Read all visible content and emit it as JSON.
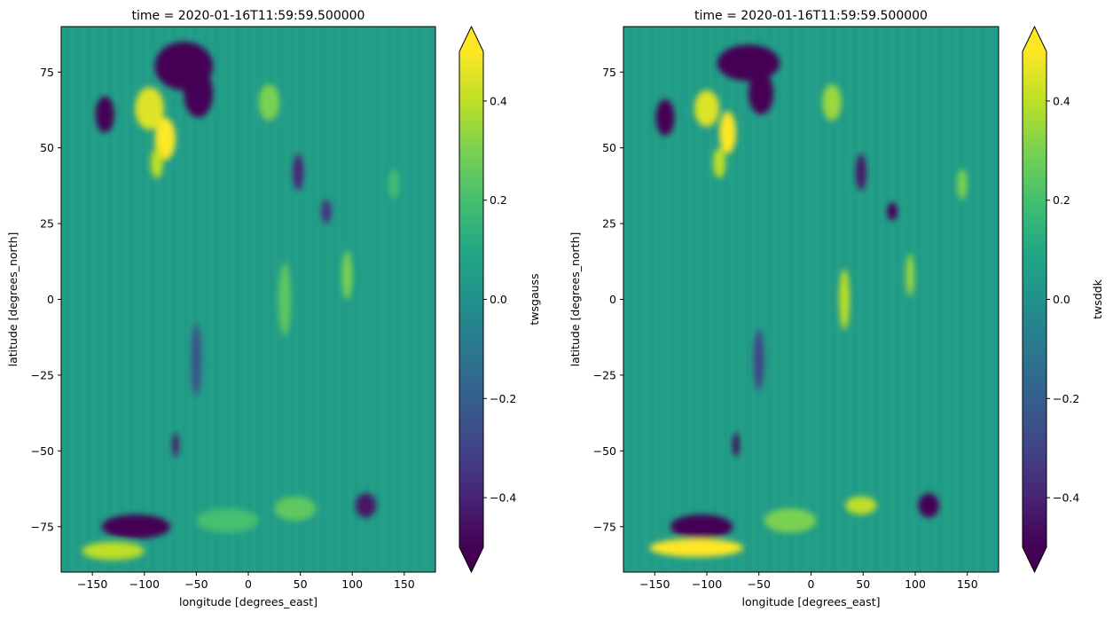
{
  "chart_data": [
    {
      "type": "heatmap",
      "title": "time = 2020-01-16T11:59:59.500000",
      "xlabel": "longitude [degrees_east]",
      "ylabel": "latitude [degrees_north]",
      "xlim": [
        -180,
        180
      ],
      "ylim": [
        -90,
        90
      ],
      "xticks": [
        -150,
        -100,
        -50,
        0,
        50,
        100,
        150
      ],
      "yticks": [
        -75,
        -50,
        -25,
        0,
        25,
        50,
        75
      ],
      "colorbar": {
        "label": "twsgauss",
        "vmin": -0.5,
        "vmax": 0.5,
        "extend": "both",
        "ticks": [
          -0.4,
          -0.2,
          0.0,
          0.2,
          0.4
        ],
        "tick_labels": [
          "−0.4",
          "−0.2",
          "0.0",
          "0.2",
          "0.4"
        ],
        "colormap": "viridis"
      },
      "grid": false,
      "background_value": 0.05,
      "features": [
        {
          "lon": -62,
          "lat": 77,
          "rlon": 28,
          "rlat": 8,
          "value": -0.6
        },
        {
          "lon": -48,
          "lat": 68,
          "rlon": 14,
          "rlat": 8,
          "value": -0.6
        },
        {
          "lon": -138,
          "lat": 61,
          "rlon": 9,
          "rlat": 6,
          "value": -0.55
        },
        {
          "lon": -95,
          "lat": 63,
          "rlon": 14,
          "rlat": 7,
          "value": 0.45
        },
        {
          "lon": -80,
          "lat": 53,
          "rlon": 10,
          "rlat": 7,
          "value": 0.5
        },
        {
          "lon": -88,
          "lat": 45,
          "rlon": 6,
          "rlat": 5,
          "value": 0.4
        },
        {
          "lon": 20,
          "lat": 65,
          "rlon": 10,
          "rlat": 6,
          "value": 0.3
        },
        {
          "lon": 48,
          "lat": 42,
          "rlon": 5,
          "rlat": 6,
          "value": -0.4
        },
        {
          "lon": 75,
          "lat": 29,
          "rlon": 5,
          "rlat": 4,
          "value": -0.35
        },
        {
          "lon": 35,
          "lat": 0,
          "rlon": 6,
          "rlat": 12,
          "value": 0.25
        },
        {
          "lon": 95,
          "lat": 8,
          "rlon": 5,
          "rlat": 8,
          "value": 0.3
        },
        {
          "lon": -50,
          "lat": -20,
          "rlon": 5,
          "rlat": 12,
          "value": -0.25
        },
        {
          "lon": -70,
          "lat": -48,
          "rlon": 3,
          "rlat": 4,
          "value": -0.45
        },
        {
          "lon": -108,
          "lat": -75,
          "rlon": 33,
          "rlat": 4,
          "value": -0.6
        },
        {
          "lon": -130,
          "lat": -83,
          "rlon": 30,
          "rlat": 3,
          "value": 0.4
        },
        {
          "lon": -20,
          "lat": -73,
          "rlon": 30,
          "rlat": 4,
          "value": 0.2
        },
        {
          "lon": 45,
          "lat": -69,
          "rlon": 20,
          "rlat": 4,
          "value": 0.25
        },
        {
          "lon": 113,
          "lat": -68,
          "rlon": 10,
          "rlat": 4,
          "value": -0.45
        },
        {
          "lon": 140,
          "lat": 38,
          "rlon": 5,
          "rlat": 5,
          "value": 0.2
        }
      ]
    },
    {
      "type": "heatmap",
      "title": "time = 2020-01-16T11:59:59.500000",
      "xlabel": "longitude [degrees_east]",
      "ylabel": "latitude [degrees_north]",
      "xlim": [
        -180,
        180
      ],
      "ylim": [
        -90,
        90
      ],
      "xticks": [
        -150,
        -100,
        -50,
        0,
        50,
        100,
        150
      ],
      "yticks": [
        -75,
        -50,
        -25,
        0,
        25,
        50,
        75
      ],
      "colorbar": {
        "label": "twsddk",
        "vmin": -0.5,
        "vmax": 0.5,
        "extend": "both",
        "ticks": [
          -0.4,
          -0.2,
          0.0,
          0.2,
          0.4
        ],
        "tick_labels": [
          "−0.4",
          "−0.2",
          "0.0",
          "0.2",
          "0.4"
        ],
        "colormap": "viridis"
      },
      "grid": false,
      "background_value": 0.05,
      "features": [
        {
          "lon": -60,
          "lat": 78,
          "rlon": 30,
          "rlat": 6,
          "value": -0.6
        },
        {
          "lon": -48,
          "lat": 68,
          "rlon": 12,
          "rlat": 7,
          "value": -0.6
        },
        {
          "lon": -140,
          "lat": 60,
          "rlon": 9,
          "rlat": 6,
          "value": -0.55
        },
        {
          "lon": -100,
          "lat": 63,
          "rlon": 12,
          "rlat": 6,
          "value": 0.45
        },
        {
          "lon": -80,
          "lat": 55,
          "rlon": 8,
          "rlat": 7,
          "value": 0.5
        },
        {
          "lon": -88,
          "lat": 45,
          "rlon": 6,
          "rlat": 5,
          "value": 0.4
        },
        {
          "lon": 20,
          "lat": 65,
          "rlon": 9,
          "rlat": 6,
          "value": 0.35
        },
        {
          "lon": 48,
          "lat": 42,
          "rlon": 5,
          "rlat": 6,
          "value": -0.45
        },
        {
          "lon": 78,
          "lat": 29,
          "rlon": 5,
          "rlat": 3,
          "value": -0.5
        },
        {
          "lon": 32,
          "lat": 0,
          "rlon": 5,
          "rlat": 10,
          "value": 0.4
        },
        {
          "lon": 95,
          "lat": 8,
          "rlon": 4,
          "rlat": 7,
          "value": 0.35
        },
        {
          "lon": -50,
          "lat": -20,
          "rlon": 5,
          "rlat": 10,
          "value": -0.3
        },
        {
          "lon": -72,
          "lat": -48,
          "rlon": 3,
          "rlat": 4,
          "value": -0.55
        },
        {
          "lon": -105,
          "lat": -75,
          "rlon": 30,
          "rlat": 4,
          "value": -0.6
        },
        {
          "lon": -110,
          "lat": -82,
          "rlon": 45,
          "rlat": 3,
          "value": 0.5
        },
        {
          "lon": -20,
          "lat": -73,
          "rlon": 25,
          "rlat": 4,
          "value": 0.3
        },
        {
          "lon": 48,
          "lat": -68,
          "rlon": 15,
          "rlat": 3,
          "value": 0.4
        },
        {
          "lon": 113,
          "lat": -68,
          "rlon": 10,
          "rlat": 4,
          "value": -0.55
        },
        {
          "lon": 145,
          "lat": 38,
          "rlon": 5,
          "rlat": 5,
          "value": 0.3
        }
      ]
    }
  ]
}
